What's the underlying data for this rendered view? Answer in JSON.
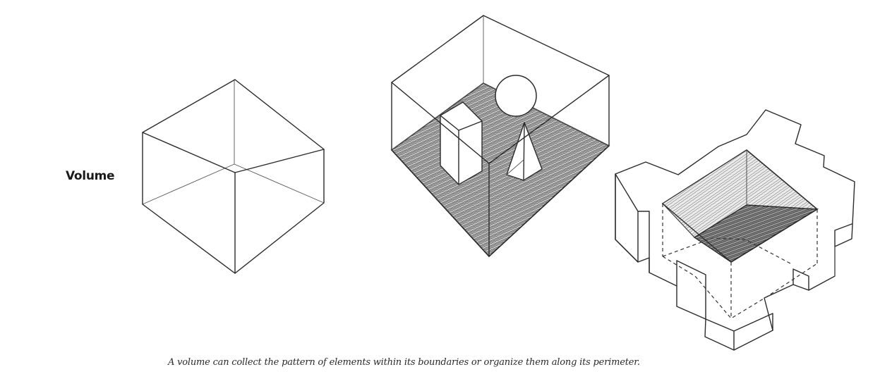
{
  "heading": "Volume",
  "caption": "A volume can collect the pattern of elements within its boundaries or organize them along its perimeter.",
  "figures": [
    {
      "name": "empty-cube"
    },
    {
      "name": "cube-with-forms"
    },
    {
      "name": "courtyard-mass"
    }
  ]
}
